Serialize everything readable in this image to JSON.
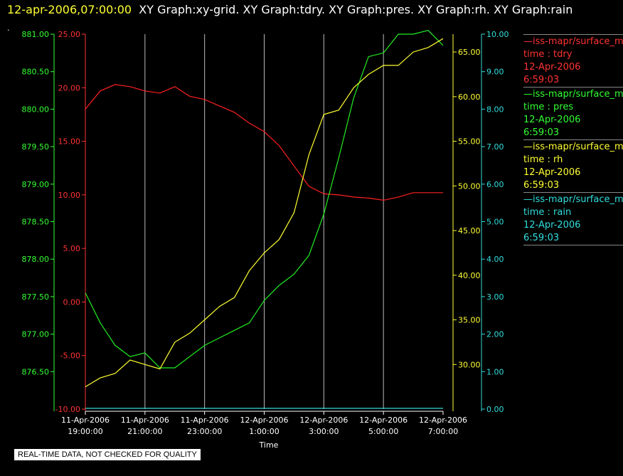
{
  "header": {
    "timestamp": "12-apr-2006,07:00:00",
    "graphs": "XY Graph:xy-grid.  XY Graph:tdry.  XY Graph:pres.  XY Graph:rh.  XY Graph:rain",
    "dot": "."
  },
  "footer_note": "REAL-TIME DATA, NOT CHECKED FOR QUALITY",
  "chart_data": {
    "type": "line",
    "xlabel": "Time",
    "grid": "vertical",
    "legend_placement": "right",
    "x_ticks": [
      {
        "line1": "11-Apr-2006",
        "line2": "19:00:00"
      },
      {
        "line1": "11-Apr-2006",
        "line2": "21:00:00"
      },
      {
        "line1": "11-Apr-2006",
        "line2": "23:00:00"
      },
      {
        "line1": "12-Apr-2006",
        "line2": "1:00:00"
      },
      {
        "line1": "12-Apr-2006",
        "line2": "3:00:00"
      },
      {
        "line1": "12-Apr-2006",
        "line2": "5:00:00"
      },
      {
        "line1": "12-Apr-2006",
        "line2": "7:00:00"
      }
    ],
    "x_hours": [
      0,
      2,
      4,
      6,
      8,
      10,
      12
    ],
    "axes": {
      "tdry": {
        "color": "#ff3333",
        "ticks": [
          "25.00",
          "20.00",
          "15.00",
          "10.00",
          "5.00",
          "0.00",
          "-5.00",
          "-10.00"
        ],
        "range": [
          -10,
          25
        ]
      },
      "pres": {
        "color": "#33ff33",
        "ticks": [
          "881.00",
          "880.50",
          "880.00",
          "879.50",
          "879.00",
          "878.50",
          "878.00",
          "877.50",
          "877.00",
          "876.50"
        ],
        "range": [
          876.0,
          881.0
        ]
      },
      "rh": {
        "color": "#ffff33",
        "ticks": [
          "65.00",
          "60.00",
          "55.00",
          "50.00",
          "45.00",
          "40.00",
          "35.00",
          "30.00"
        ],
        "range": [
          25,
          67
        ]
      },
      "rain": {
        "color": "#33dddd",
        "ticks": [
          "10.00",
          "9.00",
          "8.00",
          "7.00",
          "6.00",
          "5.00",
          "4.00",
          "3.00",
          "2.00",
          "1.00",
          "0.00"
        ],
        "range": [
          0,
          10
        ]
      }
    },
    "series": [
      {
        "name": "tdry",
        "axis": "tdry",
        "color": "#ff2020",
        "x": [
          0,
          0.5,
          1,
          1.5,
          2,
          2.5,
          3,
          3.5,
          4,
          4.5,
          5,
          5.5,
          6,
          6.5,
          7,
          7.5,
          8,
          8.5,
          9,
          9.5,
          10,
          10.5,
          11,
          11.5,
          12
        ],
        "y": [
          18.0,
          19.7,
          20.3,
          20.1,
          19.7,
          19.5,
          20.1,
          19.2,
          18.9,
          18.3,
          17.7,
          16.7,
          15.9,
          14.6,
          12.7,
          10.8,
          10.1,
          10.0,
          9.8,
          9.7,
          9.5,
          9.8,
          10.2,
          10.2,
          10.2
        ]
      },
      {
        "name": "pres",
        "axis": "pres",
        "color": "#22ee22",
        "x": [
          0,
          0.5,
          1,
          1.5,
          2,
          2.5,
          3,
          3.5,
          4,
          4.5,
          5,
          5.5,
          6,
          6.5,
          7,
          7.5,
          8,
          8.5,
          9,
          9.5,
          10,
          10.5,
          11,
          11.5,
          12
        ],
        "y": [
          877.55,
          877.15,
          876.85,
          876.7,
          876.75,
          876.55,
          876.55,
          876.7,
          876.85,
          876.95,
          877.05,
          877.15,
          877.45,
          877.65,
          877.8,
          878.05,
          878.6,
          879.35,
          880.15,
          880.7,
          880.75,
          881.0,
          881.0,
          881.05,
          880.85
        ]
      },
      {
        "name": "rh",
        "axis": "rh",
        "color": "#ffff33",
        "x": [
          0,
          0.5,
          1,
          1.5,
          2,
          2.5,
          3,
          3.5,
          4,
          4.5,
          5,
          5.5,
          6,
          6.5,
          7,
          7.5,
          8,
          8.5,
          9,
          9.5,
          10,
          10.5,
          11,
          11.5,
          12
        ],
        "y": [
          27.5,
          28.5,
          29.0,
          30.5,
          30.0,
          29.5,
          32.5,
          33.5,
          35.0,
          36.5,
          37.5,
          40.5,
          42.5,
          44.0,
          47.0,
          53.5,
          58.0,
          58.5,
          61.0,
          62.5,
          63.5,
          63.5,
          65.0,
          65.5,
          66.5
        ]
      },
      {
        "name": "rain",
        "axis": "rain",
        "color": "#33dddd",
        "x": [
          0,
          12
        ],
        "y": [
          0.02,
          0.02
        ]
      }
    ]
  },
  "legend": [
    {
      "source": "—iss-mapr/surface_m",
      "var": "time : tdry",
      "date": "12-Apr-2006",
      "time": "6:59:03",
      "color": "#ff3333"
    },
    {
      "source": "—iss-mapr/surface_m",
      "var": "time : pres",
      "date": "12-Apr-2006",
      "time": "6:59:03",
      "color": "#33ff33"
    },
    {
      "source": "—iss-mapr/surface_m",
      "var": "time : rh",
      "date": "12-Apr-2006",
      "time": "6:59:03",
      "color": "#ffff33"
    },
    {
      "source": "—iss-mapr/surface_m",
      "var": "time : rain",
      "date": "12-Apr-2006",
      "time": "6:59:03",
      "color": "#33dddd"
    }
  ]
}
